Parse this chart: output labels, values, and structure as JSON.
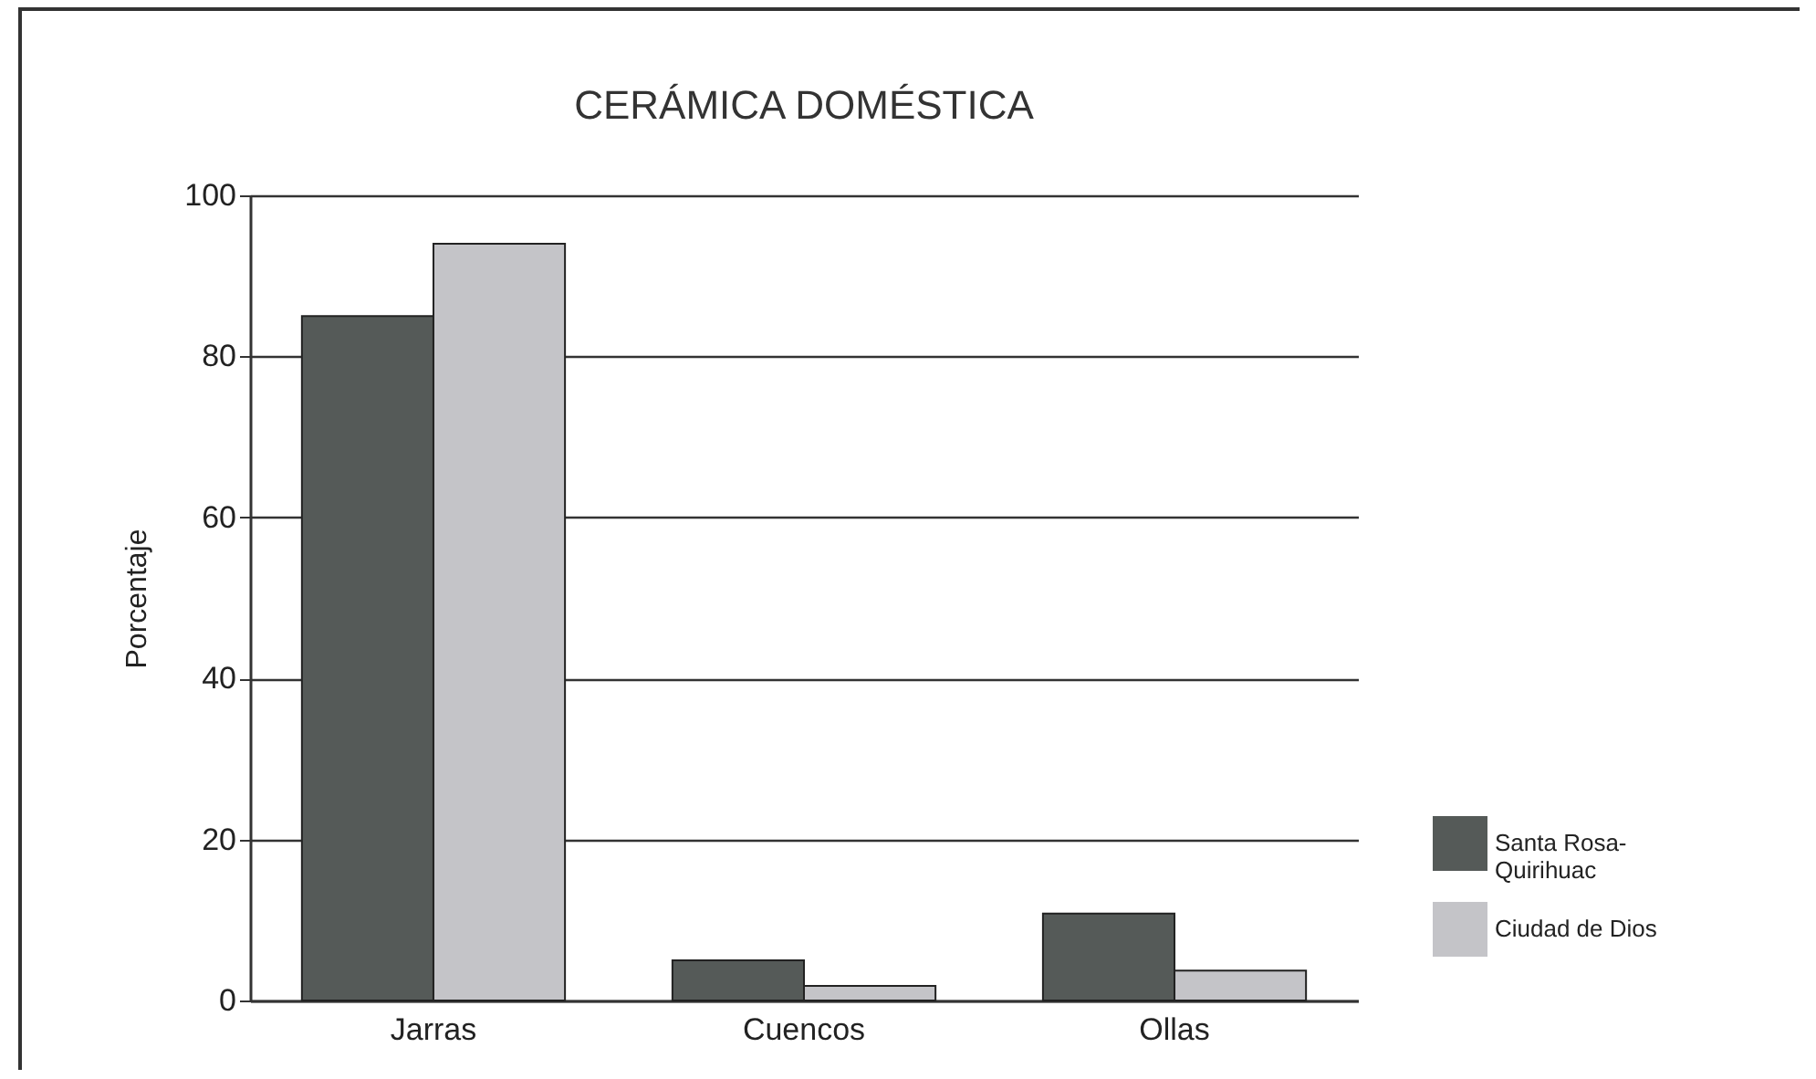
{
  "chart_data": {
    "type": "bar",
    "title": "CERÁMICA DOMÉSTICA",
    "ylabel": "Porcentaje",
    "categories": [
      "Jarras",
      "Cuencos",
      "Ollas"
    ],
    "series": [
      {
        "name": "Santa Rosa-Quirihuac",
        "color": "#555a58",
        "values": [
          85,
          5,
          10.8
        ]
      },
      {
        "name": "Ciudad de Dios",
        "color": "#c4c4c8",
        "values": [
          94,
          1.8,
          3.7
        ]
      }
    ],
    "ylim": [
      0,
      100
    ],
    "yticks": [
      0,
      20,
      40,
      60,
      80,
      100
    ],
    "grid": "y",
    "legend": "bottom right"
  }
}
